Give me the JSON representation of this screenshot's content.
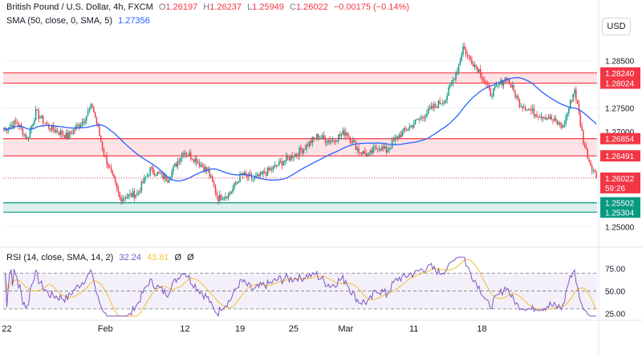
{
  "header": {
    "symbol": "British Pound / U.S. Dollar, 4h, FXCM",
    "o_label": "O",
    "o_value": "1.26197",
    "h_label": "H",
    "h_value": "1.26237",
    "l_label": "L",
    "l_value": "1.25949",
    "c_label": "C",
    "c_value": "1.26022",
    "change": "−0.00175 (−0.14%)"
  },
  "sma_legend": {
    "label": "SMA (50, close, 0, SMA, 5)",
    "value": "1.27356"
  },
  "rsi_legend": {
    "label": "RSI (14, close, SMA, 14, 2)",
    "value": "32.24",
    "sma_value": "43.81",
    "extra1": "Ø",
    "extra2": "Ø"
  },
  "currency_button": "USD",
  "colors": {
    "up": "#089981",
    "down": "#f23645",
    "sma": "#2962ff",
    "rsi": "#7e57c2",
    "rsi_sma": "#f5c242",
    "resistance_zone": "#f23645",
    "support_zone": "#089981"
  },
  "chart_data": [
    {
      "type": "candlestick",
      "title": "British Pound / U.S. Dollar, 4h, FXCM",
      "ylim": [
        1.247,
        1.291
      ],
      "y_ticks": [
        "1.25000",
        "1.27000",
        "1.27500",
        "1.28500"
      ],
      "x_ticks": [
        "22",
        "Feb",
        "12",
        "19",
        "25",
        "Mar",
        "11",
        "18"
      ],
      "price_levels": [
        {
          "label": "1.28240",
          "value": 1.2824,
          "color": "#f23645"
        },
        {
          "label": "1.28024",
          "value": 1.28024,
          "color": "#f23645"
        },
        {
          "label": "1.26854",
          "value": 1.26854,
          "color": "#f23645"
        },
        {
          "label": "1.26491",
          "value": 1.26491,
          "color": "#f23645"
        },
        {
          "label": "1.25502",
          "value": 1.25502,
          "color": "#089981"
        },
        {
          "label": "1.25304",
          "value": 1.25304,
          "color": "#089981"
        }
      ],
      "zones": [
        {
          "from": 1.28024,
          "to": 1.2824,
          "color": "#f23645"
        },
        {
          "from": 1.26491,
          "to": 1.26854,
          "color": "#f23645"
        },
        {
          "from": 1.25304,
          "to": 1.25502,
          "color": "#089981"
        }
      ],
      "last_price": {
        "label": "1.26022",
        "value": 1.26022,
        "countdown": "59:26"
      },
      "close_path": [
        [
          0,
          1.2705
        ],
        [
          9,
          1.272
        ],
        [
          16,
          1.2685
        ],
        [
          22,
          1.274
        ],
        [
          31,
          1.271
        ],
        [
          44,
          1.269
        ],
        [
          55,
          1.2725
        ],
        [
          61,
          1.2755
        ],
        [
          69,
          1.2655
        ],
        [
          80,
          1.256
        ],
        [
          92,
          1.257
        ],
        [
          101,
          1.262
        ],
        [
          113,
          1.26
        ],
        [
          124,
          1.266
        ],
        [
          133,
          1.264
        ],
        [
          141,
          1.2615
        ],
        [
          148,
          1.256
        ],
        [
          156,
          1.257
        ],
        [
          164,
          1.261
        ],
        [
          173,
          1.26
        ],
        [
          184,
          1.262
        ],
        [
          194,
          1.264
        ],
        [
          205,
          1.266
        ],
        [
          216,
          1.269
        ],
        [
          226,
          1.268
        ],
        [
          236,
          1.27
        ],
        [
          245,
          1.266
        ],
        [
          252,
          1.265
        ],
        [
          258,
          1.267
        ],
        [
          264,
          1.266
        ],
        [
          272,
          1.269
        ],
        [
          284,
          1.272
        ],
        [
          296,
          1.275
        ],
        [
          305,
          1.277
        ],
        [
          314,
          1.284
        ],
        [
          317,
          1.288
        ],
        [
          320,
          1.286
        ],
        [
          328,
          1.283
        ],
        [
          336,
          1.278
        ],
        [
          347,
          1.2815
        ],
        [
          356,
          1.276
        ],
        [
          366,
          1.274
        ],
        [
          376,
          1.273
        ],
        [
          386,
          1.271
        ],
        [
          394,
          1.279
        ],
        [
          400,
          1.268
        ],
        [
          404,
          1.264
        ],
        [
          409,
          1.2605
        ]
      ],
      "candle_count": 410,
      "sma": {
        "name": "SMA",
        "value_label": "1.27356"
      }
    },
    {
      "type": "line",
      "title": "RSI (14, close, SMA, 14, 2)",
      "ylim": [
        20,
        90
      ],
      "y_ticks": [
        "25.00",
        "50.00",
        "75.00"
      ],
      "bands": [
        30,
        50,
        70
      ],
      "series": [
        {
          "name": "RSI",
          "color": "#7e57c2",
          "current": 32.24
        },
        {
          "name": "RSI SMA",
          "color": "#f5c242",
          "current": 43.81
        }
      ]
    }
  ]
}
